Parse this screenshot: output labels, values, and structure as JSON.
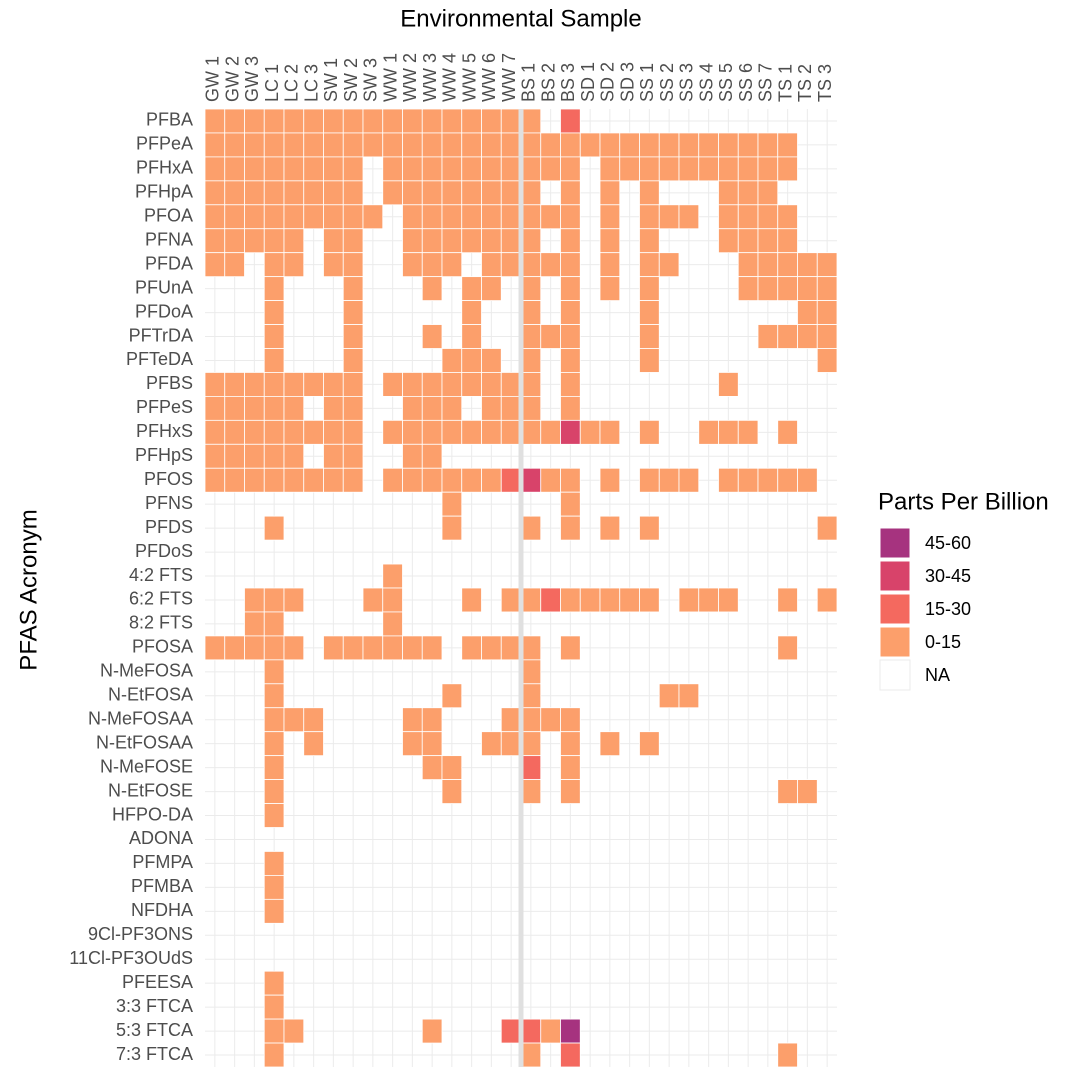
{
  "chart_data": {
    "type": "heatmap",
    "x_label": "Environmental Sample",
    "y_label": "PFAS Acronym",
    "columns": [
      "GW 1",
      "GW 2",
      "GW 3",
      "LC 1",
      "LC 2",
      "LC 3",
      "SW 1",
      "SW 2",
      "SW 3",
      "WW 1",
      "WW 2",
      "WW 3",
      "WW 4",
      "WW 5",
      "WW 6",
      "WW 7",
      "BS 1",
      "BS 2",
      "BS 3",
      "SD 1",
      "SD 2",
      "SD 3",
      "SS 1",
      "SS 2",
      "SS 3",
      "SS 4",
      "SS 5",
      "SS 6",
      "SS 7",
      "TS 1",
      "TS 2",
      "TS 3"
    ],
    "rows": [
      "PFBA",
      "PFPeA",
      "PFHxA",
      "PFHpA",
      "PFOA",
      "PFNA",
      "PFDA",
      "PFUnA",
      "PFDoA",
      "PFTrDA",
      "PFTeDA",
      "PFBS",
      "PFPeS",
      "PFHxS",
      "PFHpS",
      "PFOS",
      "PFNS",
      "PFDS",
      "PFDoS",
      "4:2 FTS",
      "6:2 FTS",
      "8:2 FTS",
      "PFOSA",
      "N-MeFOSA",
      "N-EtFOSA",
      "N-MeFOSAA",
      "N-EtFOSAA",
      "N-MeFOSE",
      "N-EtFOSE",
      "HFPO-DA",
      "ADONA",
      "PFMPA",
      "PFMBA",
      "NFDHA",
      "9Cl-PF3ONS",
      "11Cl-PF3OUdS",
      "PFEESA",
      "3:3 FTCA",
      "5:3 FTCA",
      "7:3 FTCA"
    ],
    "legend": {
      "title": "Parts Per Billion",
      "levels": [
        "0-15",
        "15-30",
        "30-45",
        "45-60"
      ],
      "colors": [
        "#fc9f6b",
        "#f4695f",
        "#d8436a",
        "#a6337f"
      ],
      "na_label": "NA",
      "na_color": "#ffffff"
    },
    "cells": [
      [
        0,
        0,
        0,
        0,
        0,
        0,
        0,
        0,
        0,
        0,
        0,
        0,
        0,
        0,
        0,
        0,
        0,
        null,
        1,
        null,
        null,
        null,
        null,
        null,
        null,
        null,
        null,
        null,
        null,
        null,
        null,
        null
      ],
      [
        0,
        0,
        0,
        0,
        0,
        0,
        0,
        0,
        0,
        0,
        0,
        0,
        0,
        0,
        0,
        0,
        0,
        0,
        0,
        0,
        0,
        0,
        0,
        0,
        0,
        0,
        0,
        0,
        0,
        0,
        null,
        null
      ],
      [
        0,
        0,
        0,
        0,
        0,
        0,
        0,
        0,
        null,
        0,
        0,
        0,
        0,
        0,
        0,
        0,
        0,
        0,
        0,
        null,
        0,
        0,
        0,
        0,
        0,
        0,
        0,
        0,
        0,
        0,
        null,
        null
      ],
      [
        0,
        0,
        0,
        0,
        0,
        0,
        0,
        0,
        null,
        0,
        0,
        0,
        0,
        0,
        0,
        0,
        0,
        null,
        0,
        null,
        0,
        null,
        0,
        null,
        null,
        null,
        0,
        0,
        0,
        null,
        null,
        null
      ],
      [
        0,
        0,
        0,
        0,
        0,
        0,
        0,
        0,
        0,
        null,
        0,
        0,
        0,
        0,
        0,
        0,
        0,
        0,
        0,
        null,
        0,
        null,
        0,
        0,
        0,
        null,
        0,
        0,
        0,
        0,
        null,
        null
      ],
      [
        0,
        0,
        0,
        0,
        0,
        null,
        0,
        0,
        null,
        null,
        0,
        0,
        0,
        0,
        0,
        0,
        0,
        null,
        0,
        null,
        0,
        null,
        0,
        null,
        null,
        null,
        0,
        0,
        0,
        0,
        null,
        null
      ],
      [
        0,
        0,
        null,
        0,
        0,
        null,
        0,
        0,
        null,
        null,
        0,
        0,
        0,
        null,
        0,
        0,
        0,
        0,
        0,
        null,
        0,
        null,
        0,
        0,
        null,
        null,
        null,
        0,
        0,
        0,
        0,
        0
      ],
      [
        null,
        null,
        null,
        0,
        null,
        null,
        null,
        0,
        null,
        null,
        null,
        0,
        null,
        0,
        0,
        null,
        0,
        null,
        0,
        null,
        0,
        null,
        0,
        null,
        null,
        null,
        null,
        0,
        0,
        0,
        0,
        0
      ],
      [
        null,
        null,
        null,
        0,
        null,
        null,
        null,
        0,
        null,
        null,
        null,
        null,
        null,
        0,
        null,
        null,
        0,
        null,
        0,
        null,
        null,
        null,
        0,
        null,
        null,
        null,
        null,
        null,
        null,
        null,
        0,
        0
      ],
      [
        null,
        null,
        null,
        0,
        null,
        null,
        null,
        0,
        null,
        null,
        null,
        0,
        null,
        0,
        null,
        null,
        0,
        0,
        0,
        null,
        null,
        null,
        0,
        null,
        null,
        null,
        null,
        null,
        0,
        0,
        0,
        0
      ],
      [
        null,
        null,
        null,
        0,
        null,
        null,
        null,
        0,
        null,
        null,
        null,
        null,
        0,
        0,
        0,
        null,
        0,
        null,
        0,
        null,
        null,
        null,
        0,
        null,
        null,
        null,
        null,
        null,
        null,
        null,
        null,
        0
      ],
      [
        0,
        0,
        0,
        0,
        0,
        0,
        0,
        0,
        null,
        0,
        0,
        0,
        0,
        0,
        0,
        0,
        0,
        null,
        0,
        null,
        null,
        null,
        null,
        null,
        null,
        null,
        0,
        null,
        null,
        null,
        null,
        null
      ],
      [
        0,
        0,
        0,
        0,
        0,
        null,
        0,
        0,
        null,
        null,
        0,
        0,
        0,
        null,
        0,
        0,
        0,
        null,
        0,
        null,
        null,
        null,
        null,
        null,
        null,
        null,
        null,
        null,
        null,
        null,
        null,
        null
      ],
      [
        0,
        0,
        0,
        0,
        0,
        0,
        0,
        0,
        null,
        0,
        0,
        0,
        0,
        0,
        0,
        0,
        0,
        0,
        2,
        0,
        0,
        null,
        0,
        null,
        null,
        0,
        0,
        0,
        null,
        0,
        null,
        null
      ],
      [
        0,
        0,
        0,
        0,
        0,
        null,
        0,
        0,
        null,
        null,
        0,
        0,
        null,
        null,
        null,
        null,
        null,
        null,
        null,
        null,
        null,
        null,
        null,
        null,
        null,
        null,
        null,
        null,
        null,
        null,
        null,
        null
      ],
      [
        0,
        0,
        0,
        0,
        0,
        0,
        0,
        0,
        null,
        0,
        0,
        0,
        0,
        0,
        0,
        1,
        2,
        0,
        0,
        null,
        0,
        null,
        0,
        0,
        0,
        null,
        0,
        0,
        0,
        0,
        0,
        null
      ],
      [
        null,
        null,
        null,
        null,
        null,
        null,
        null,
        null,
        null,
        null,
        null,
        null,
        0,
        null,
        null,
        null,
        null,
        null,
        0,
        null,
        null,
        null,
        null,
        null,
        null,
        null,
        null,
        null,
        null,
        null,
        null,
        null
      ],
      [
        null,
        null,
        null,
        0,
        null,
        null,
        null,
        null,
        null,
        null,
        null,
        null,
        0,
        null,
        null,
        null,
        0,
        null,
        0,
        null,
        0,
        null,
        0,
        null,
        null,
        null,
        null,
        null,
        null,
        null,
        null,
        0
      ],
      [
        null,
        null,
        null,
        null,
        null,
        null,
        null,
        null,
        null,
        null,
        null,
        null,
        null,
        null,
        null,
        null,
        null,
        null,
        null,
        null,
        null,
        null,
        null,
        null,
        null,
        null,
        null,
        null,
        null,
        null,
        null,
        null
      ],
      [
        null,
        null,
        null,
        null,
        null,
        null,
        null,
        null,
        null,
        0,
        null,
        null,
        null,
        null,
        null,
        null,
        null,
        null,
        null,
        null,
        null,
        null,
        null,
        null,
        null,
        null,
        null,
        null,
        null,
        null,
        null,
        null
      ],
      [
        null,
        null,
        0,
        0,
        0,
        null,
        null,
        null,
        0,
        0,
        null,
        null,
        null,
        0,
        null,
        0,
        0,
        1,
        0,
        0,
        0,
        0,
        0,
        null,
        0,
        0,
        0,
        null,
        null,
        0,
        null,
        0
      ],
      [
        null,
        null,
        0,
        0,
        null,
        null,
        null,
        null,
        null,
        0,
        null,
        null,
        null,
        null,
        null,
        null,
        null,
        null,
        null,
        null,
        null,
        null,
        null,
        null,
        null,
        null,
        null,
        null,
        null,
        null,
        null,
        null
      ],
      [
        0,
        0,
        0,
        0,
        0,
        null,
        0,
        0,
        0,
        0,
        0,
        0,
        null,
        0,
        0,
        0,
        0,
        null,
        0,
        null,
        null,
        null,
        null,
        null,
        null,
        null,
        null,
        null,
        null,
        0,
        null,
        null
      ],
      [
        null,
        null,
        null,
        0,
        null,
        null,
        null,
        null,
        null,
        null,
        null,
        null,
        null,
        null,
        null,
        null,
        0,
        null,
        null,
        null,
        null,
        null,
        null,
        null,
        null,
        null,
        null,
        null,
        null,
        null,
        null,
        null
      ],
      [
        null,
        null,
        null,
        0,
        null,
        null,
        null,
        null,
        null,
        null,
        null,
        null,
        0,
        null,
        null,
        null,
        0,
        null,
        null,
        null,
        null,
        null,
        null,
        0,
        0,
        null,
        null,
        null,
        null,
        null,
        null,
        null
      ],
      [
        null,
        null,
        null,
        0,
        0,
        0,
        null,
        null,
        null,
        null,
        0,
        0,
        null,
        null,
        null,
        0,
        0,
        0,
        0,
        null,
        null,
        null,
        null,
        null,
        null,
        null,
        null,
        null,
        null,
        null,
        null,
        null
      ],
      [
        null,
        null,
        null,
        0,
        null,
        0,
        null,
        null,
        null,
        null,
        0,
        0,
        null,
        null,
        0,
        0,
        0,
        null,
        0,
        null,
        0,
        null,
        0,
        null,
        null,
        null,
        null,
        null,
        null,
        null,
        null,
        null
      ],
      [
        null,
        null,
        null,
        0,
        null,
        null,
        null,
        null,
        null,
        null,
        null,
        0,
        0,
        null,
        null,
        null,
        1,
        null,
        0,
        null,
        null,
        null,
        null,
        null,
        null,
        null,
        null,
        null,
        null,
        null,
        null,
        null
      ],
      [
        null,
        null,
        null,
        0,
        null,
        null,
        null,
        null,
        null,
        null,
        null,
        null,
        0,
        null,
        null,
        null,
        0,
        null,
        0,
        null,
        null,
        null,
        null,
        null,
        null,
        null,
        null,
        null,
        null,
        0,
        0,
        null
      ],
      [
        null,
        null,
        null,
        0,
        null,
        null,
        null,
        null,
        null,
        null,
        null,
        null,
        null,
        null,
        null,
        null,
        null,
        null,
        null,
        null,
        null,
        null,
        null,
        null,
        null,
        null,
        null,
        null,
        null,
        null,
        null,
        null
      ],
      [
        null,
        null,
        null,
        null,
        null,
        null,
        null,
        null,
        null,
        null,
        null,
        null,
        null,
        null,
        null,
        null,
        null,
        null,
        null,
        null,
        null,
        null,
        null,
        null,
        null,
        null,
        null,
        null,
        null,
        null,
        null,
        null
      ],
      [
        null,
        null,
        null,
        0,
        null,
        null,
        null,
        null,
        null,
        null,
        null,
        null,
        null,
        null,
        null,
        null,
        null,
        null,
        null,
        null,
        null,
        null,
        null,
        null,
        null,
        null,
        null,
        null,
        null,
        null,
        null,
        null
      ],
      [
        null,
        null,
        null,
        0,
        null,
        null,
        null,
        null,
        null,
        null,
        null,
        null,
        null,
        null,
        null,
        null,
        null,
        null,
        null,
        null,
        null,
        null,
        null,
        null,
        null,
        null,
        null,
        null,
        null,
        null,
        null,
        null
      ],
      [
        null,
        null,
        null,
        0,
        null,
        null,
        null,
        null,
        null,
        null,
        null,
        null,
        null,
        null,
        null,
        null,
        null,
        null,
        null,
        null,
        null,
        null,
        null,
        null,
        null,
        null,
        null,
        null,
        null,
        null,
        null,
        null
      ],
      [
        null,
        null,
        null,
        null,
        null,
        null,
        null,
        null,
        null,
        null,
        null,
        null,
        null,
        null,
        null,
        null,
        null,
        null,
        null,
        null,
        null,
        null,
        null,
        null,
        null,
        null,
        null,
        null,
        null,
        null,
        null,
        null
      ],
      [
        null,
        null,
        null,
        null,
        null,
        null,
        null,
        null,
        null,
        null,
        null,
        null,
        null,
        null,
        null,
        null,
        null,
        null,
        null,
        null,
        null,
        null,
        null,
        null,
        null,
        null,
        null,
        null,
        null,
        null,
        null,
        null
      ],
      [
        null,
        null,
        null,
        0,
        null,
        null,
        null,
        null,
        null,
        null,
        null,
        null,
        null,
        null,
        null,
        null,
        null,
        null,
        null,
        null,
        null,
        null,
        null,
        null,
        null,
        null,
        null,
        null,
        null,
        null,
        null,
        null
      ],
      [
        null,
        null,
        null,
        0,
        null,
        null,
        null,
        null,
        null,
        null,
        null,
        null,
        null,
        null,
        null,
        null,
        null,
        null,
        null,
        null,
        null,
        null,
        null,
        null,
        null,
        null,
        null,
        null,
        null,
        null,
        null,
        null
      ],
      [
        null,
        null,
        null,
        0,
        0,
        null,
        null,
        null,
        null,
        null,
        null,
        0,
        null,
        null,
        null,
        1,
        1,
        0,
        3,
        null,
        null,
        null,
        null,
        null,
        null,
        null,
        null,
        null,
        null,
        null,
        null,
        null
      ],
      [
        null,
        null,
        null,
        0,
        null,
        null,
        null,
        null,
        null,
        null,
        null,
        null,
        null,
        null,
        null,
        null,
        0,
        null,
        1,
        null,
        null,
        null,
        null,
        null,
        null,
        null,
        null,
        null,
        null,
        0,
        null,
        null
      ]
    ]
  }
}
